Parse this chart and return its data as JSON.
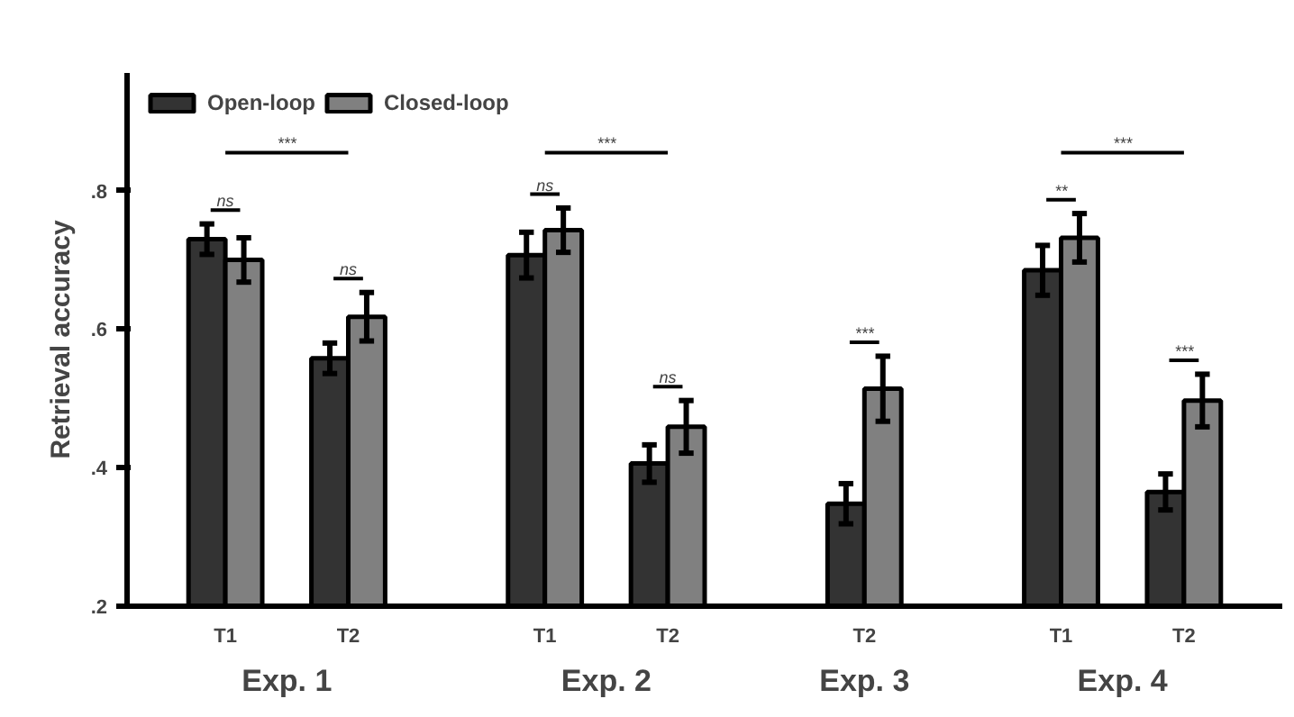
{
  "chart_data": {
    "type": "bar",
    "ylabel": "Retrieval accuracy",
    "categories": [
      "T1",
      "T2",
      "T1",
      "T2",
      "T2",
      "T1",
      "T2"
    ],
    "series": [
      {
        "name": "Open-loop",
        "color": "#333333",
        "values": [
          0.73,
          0.558,
          0.707,
          0.406,
          0.348,
          0.685,
          0.365
        ],
        "errors": [
          0.022,
          0.022,
          0.033,
          0.027,
          0.029,
          0.036,
          0.026
        ]
      },
      {
        "name": "Closed-loop",
        "color": "#808080",
        "values": [
          0.7,
          0.618,
          0.743,
          0.459,
          0.514,
          0.732,
          0.497
        ],
        "errors": [
          0.032,
          0.035,
          0.032,
          0.038,
          0.047,
          0.035,
          0.038
        ]
      }
    ],
    "ylim": [
      0.2,
      0.97
    ],
    "yticks": [
      {
        "value": 0.2,
        "label": ".2"
      },
      {
        "value": 0.4,
        "label": ".4"
      },
      {
        "value": 0.6,
        "label": ".6"
      },
      {
        "value": 0.8,
        "label": ".8"
      }
    ],
    "annotations": [
      "ns",
      "ns",
      "***",
      "ns",
      "ns",
      "***",
      "***",
      "**",
      "***",
      "***",
      "Exp. 1",
      "Exp. 2",
      "Exp. 3",
      "Exp. 4"
    ],
    "legend": "top left",
    "grid": false
  }
}
